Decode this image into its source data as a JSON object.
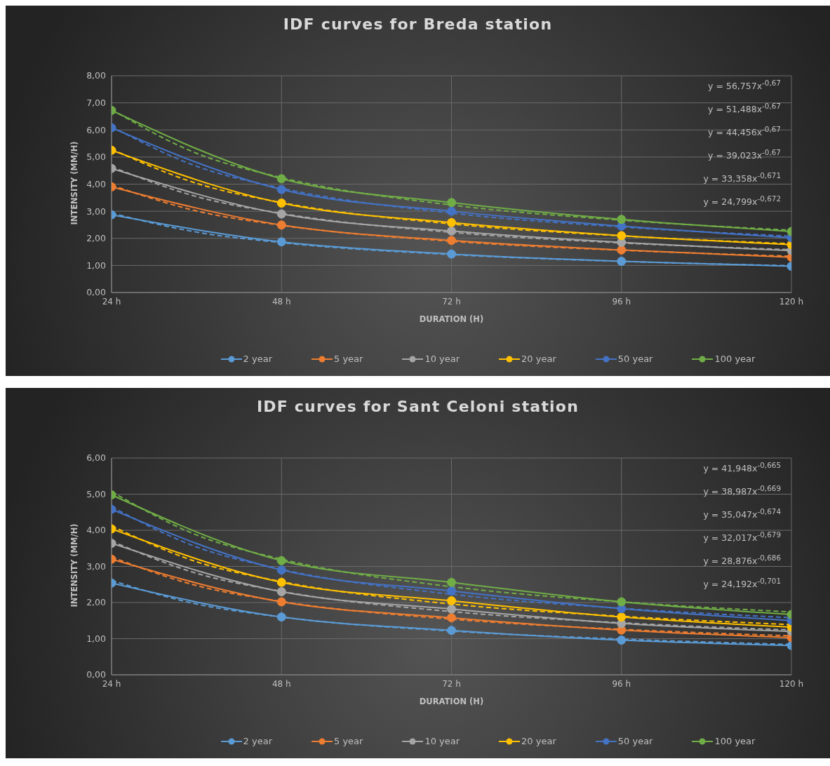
{
  "chart_data": [
    {
      "type": "line",
      "title": "IDF curves for Breda station",
      "xlabel": "DURATION (H)",
      "ylabel": "INTENSITY (MM/H)",
      "xlim": [
        24,
        120
      ],
      "xticks": [
        {
          "value": 24,
          "label": "24 h"
        },
        {
          "value": 48,
          "label": "48 h"
        },
        {
          "value": 72,
          "label": "72 h"
        },
        {
          "value": 96,
          "label": "96 h"
        },
        {
          "value": 120,
          "label": "120 h"
        }
      ],
      "ylim": [
        0,
        8
      ],
      "yticks": [
        {
          "value": 0,
          "label": "0,00"
        },
        {
          "value": 1,
          "label": "1,00"
        },
        {
          "value": 2,
          "label": "2,00"
        },
        {
          "value": 3,
          "label": "3,00"
        },
        {
          "value": 4,
          "label": "4,00"
        },
        {
          "value": 5,
          "label": "5,00"
        },
        {
          "value": 6,
          "label": "6,00"
        },
        {
          "value": 7,
          "label": "7,00"
        },
        {
          "value": 8,
          "label": "8,00"
        }
      ],
      "grid": true,
      "legend": "bottom",
      "annotations": [
        "y = 56,757x$^{-0,67}$",
        "y = 51,488x$^{-0,67}$",
        "y = 44,456x$^{-0,67}$",
        "y = 39,023x$^{-0,67}$",
        "y = 33,358x$^{-0,671}$",
        "y = 24,799x$^{-0,672}$"
      ],
      "series": [
        {
          "name": "2 year",
          "color": "#5b9bd5",
          "marker": "circle",
          "line_style": "solid",
          "x": [
            24,
            48,
            72,
            96,
            120
          ],
          "values": [
            2.87,
            1.87,
            1.42,
            1.15,
            0.97
          ]
        },
        {
          "name": "5 year",
          "color": "#ed7d31",
          "marker": "circle",
          "line_style": "solid",
          "x": [
            24,
            48,
            72,
            96,
            120
          ],
          "values": [
            3.9,
            2.49,
            1.92,
            1.57,
            1.3
          ]
        },
        {
          "name": "10 year",
          "color": "#a5a5a5",
          "marker": "circle",
          "line_style": "solid",
          "x": [
            24,
            48,
            72,
            96,
            120
          ],
          "values": [
            4.58,
            2.9,
            2.27,
            1.85,
            1.55
          ]
        },
        {
          "name": "20 year",
          "color": "#ffc000",
          "marker": "circle",
          "line_style": "solid",
          "x": [
            24,
            48,
            72,
            96,
            120
          ],
          "values": [
            5.25,
            3.3,
            2.58,
            2.1,
            1.77
          ]
        },
        {
          "name": "50 year",
          "color": "#4472c4",
          "marker": "circle",
          "line_style": "solid",
          "x": [
            24,
            48,
            72,
            96,
            120
          ],
          "values": [
            6.08,
            3.8,
            3.0,
            2.45,
            2.02
          ]
        },
        {
          "name": "100 year",
          "color": "#70ad47",
          "marker": "circle",
          "line_style": "solid",
          "x": [
            24,
            48,
            72,
            96,
            120
          ],
          "values": [
            6.72,
            4.2,
            3.32,
            2.7,
            2.25
          ]
        },
        {
          "color": "#5b9bd5",
          "marker": "none",
          "line_style": "dashed",
          "x": [
            24,
            36,
            48,
            72,
            96,
            120
          ],
          "values": [
            2.93,
            2.23,
            1.84,
            1.4,
            1.15,
            0.99
          ]
        },
        {
          "color": "#ed7d31",
          "marker": "none",
          "line_style": "dashed",
          "x": [
            24,
            36,
            48,
            72,
            96,
            120
          ],
          "values": [
            3.96,
            3.01,
            2.48,
            1.89,
            1.56,
            1.34
          ]
        },
        {
          "color": "#a5a5a5",
          "marker": "none",
          "line_style": "dashed",
          "x": [
            24,
            36,
            48,
            72,
            96,
            120
          ],
          "values": [
            4.64,
            3.54,
            2.92,
            2.22,
            1.83,
            1.58
          ]
        },
        {
          "color": "#ffc000",
          "marker": "none",
          "line_style": "dashed",
          "x": [
            24,
            36,
            48,
            72,
            96,
            120
          ],
          "values": [
            5.29,
            4.03,
            3.32,
            2.53,
            2.09,
            1.8
          ]
        },
        {
          "color": "#4472c4",
          "marker": "none",
          "line_style": "dashed",
          "x": [
            24,
            36,
            48,
            72,
            96,
            120
          ],
          "values": [
            6.12,
            4.66,
            3.85,
            2.93,
            2.42,
            2.08
          ]
        },
        {
          "color": "#70ad47",
          "marker": "none",
          "line_style": "dashed",
          "x": [
            24,
            36,
            48,
            72,
            96,
            120
          ],
          "values": [
            6.75,
            5.14,
            4.24,
            3.23,
            2.67,
            2.3
          ]
        }
      ]
    },
    {
      "type": "line",
      "title": "IDF curves for Sant Celoni station",
      "xlabel": "DURATION (H)",
      "ylabel": "INTENSITY (MM/H)",
      "xlim": [
        24,
        120
      ],
      "xticks": [
        {
          "value": 24,
          "label": "24 h"
        },
        {
          "value": 48,
          "label": "48 h"
        },
        {
          "value": 72,
          "label": "72 h"
        },
        {
          "value": 96,
          "label": "96 h"
        },
        {
          "value": 120,
          "label": "120 h"
        }
      ],
      "ylim": [
        0,
        6
      ],
      "yticks": [
        {
          "value": 0,
          "label": "0,00"
        },
        {
          "value": 1,
          "label": "1,00"
        },
        {
          "value": 2,
          "label": "2,00"
        },
        {
          "value": 3,
          "label": "3,00"
        },
        {
          "value": 4,
          "label": "4,00"
        },
        {
          "value": 5,
          "label": "5,00"
        },
        {
          "value": 6,
          "label": "6,00"
        }
      ],
      "grid": true,
      "legend": "bottom",
      "annotations": [
        "y = 41,948x$^{-0,665}$",
        "y = 38,987x$^{-0,669}$",
        "y = 35,047x$^{-0,674}$",
        "y = 32,017x$^{-0,679}$",
        "y = 28,876x$^{-0,686}$",
        "y = 24,192x$^{-0,701}$"
      ],
      "series": [
        {
          "name": "2 year",
          "color": "#5b9bd5",
          "marker": "circle",
          "line_style": "solid",
          "x": [
            24,
            48,
            72,
            96,
            120
          ],
          "values": [
            2.54,
            1.6,
            1.23,
            0.96,
            0.81
          ]
        },
        {
          "name": "5 year",
          "color": "#ed7d31",
          "marker": "circle",
          "line_style": "solid",
          "x": [
            24,
            48,
            72,
            96,
            120
          ],
          "values": [
            3.2,
            2.02,
            1.58,
            1.24,
            1.03
          ]
        },
        {
          "name": "10 year",
          "color": "#a5a5a5",
          "marker": "circle",
          "line_style": "solid",
          "x": [
            24,
            48,
            72,
            96,
            120
          ],
          "values": [
            3.64,
            2.3,
            1.82,
            1.42,
            1.2
          ]
        },
        {
          "name": "20 year",
          "color": "#ffc000",
          "marker": "circle",
          "line_style": "solid",
          "x": [
            24,
            48,
            72,
            96,
            120
          ],
          "values": [
            4.04,
            2.56,
            2.05,
            1.6,
            1.32
          ]
        },
        {
          "name": "50 year",
          "color": "#4472c4",
          "marker": "circle",
          "line_style": "solid",
          "x": [
            24,
            48,
            72,
            96,
            120
          ],
          "values": [
            4.58,
            2.9,
            2.32,
            1.83,
            1.5
          ]
        },
        {
          "name": "100 year",
          "color": "#70ad47",
          "marker": "circle",
          "line_style": "solid",
          "x": [
            24,
            48,
            72,
            96,
            120
          ],
          "values": [
            4.98,
            3.16,
            2.56,
            2.02,
            1.67
          ]
        },
        {
          "color": "#5b9bd5",
          "marker": "none",
          "line_style": "dashed",
          "x": [
            24,
            36,
            48,
            72,
            96,
            120
          ],
          "values": [
            2.61,
            1.96,
            1.6,
            1.21,
            0.99,
            0.84
          ]
        },
        {
          "color": "#ed7d31",
          "marker": "none",
          "line_style": "dashed",
          "x": [
            24,
            36,
            48,
            72,
            96,
            120
          ],
          "values": [
            3.26,
            2.47,
            2.03,
            1.54,
            1.26,
            1.08
          ]
        },
        {
          "color": "#a5a5a5",
          "marker": "none",
          "line_style": "dashed",
          "x": [
            24,
            36,
            48,
            72,
            96,
            120
          ],
          "values": [
            3.7,
            2.81,
            2.31,
            1.75,
            1.44,
            1.24
          ]
        },
        {
          "color": "#ffc000",
          "marker": "none",
          "line_style": "dashed",
          "x": [
            24,
            36,
            48,
            72,
            96,
            120
          ],
          "values": [
            4.12,
            3.13,
            2.58,
            1.96,
            1.62,
            1.39
          ]
        },
        {
          "color": "#4472c4",
          "marker": "none",
          "line_style": "dashed",
          "x": [
            24,
            36,
            48,
            72,
            96,
            120
          ],
          "values": [
            4.65,
            3.54,
            2.92,
            2.23,
            1.84,
            1.58
          ]
        },
        {
          "color": "#70ad47",
          "marker": "none",
          "line_style": "dashed",
          "x": [
            24,
            36,
            48,
            72,
            96,
            120
          ],
          "values": [
            5.07,
            3.87,
            3.2,
            2.44,
            2.02,
            1.74
          ]
        }
      ]
    }
  ]
}
